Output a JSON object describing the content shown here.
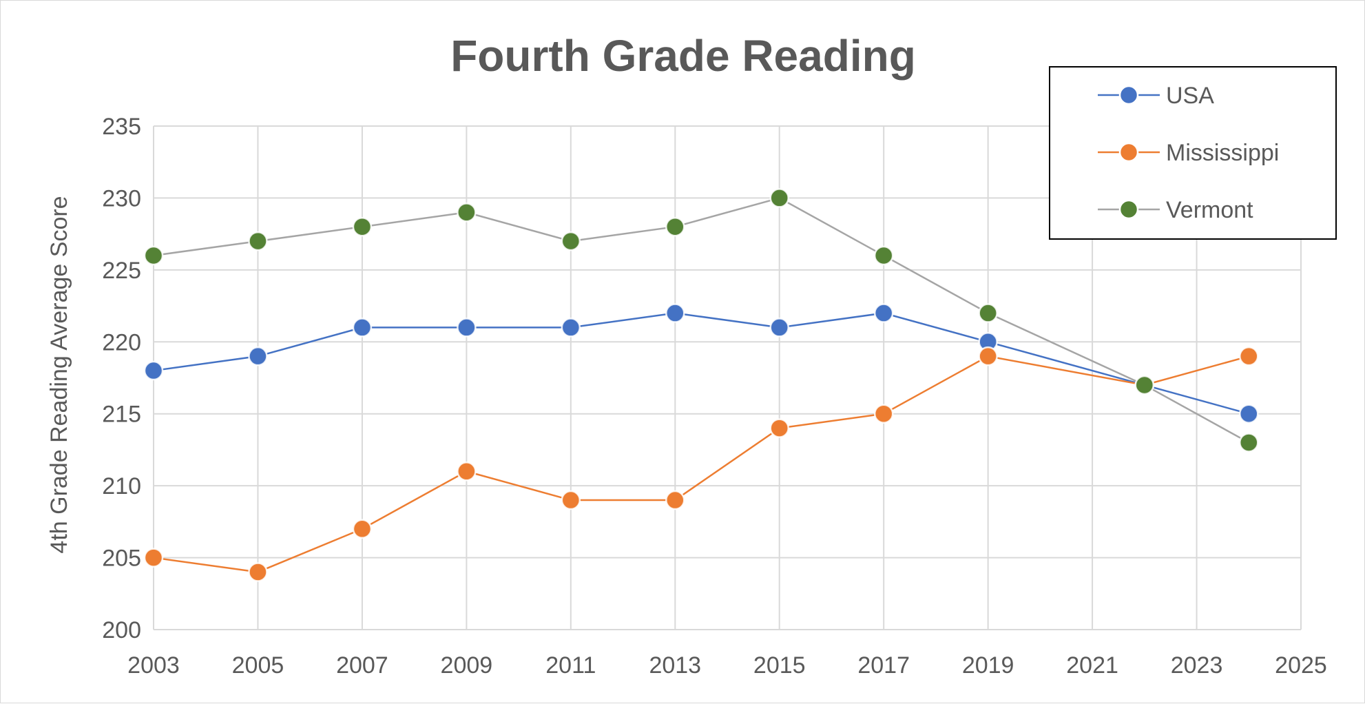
{
  "chart_data": {
    "type": "line",
    "title": "Fourth Grade Reading",
    "xlabel": "",
    "ylabel": "4th Grade Reading Average Score",
    "xlim": [
      2003,
      2025
    ],
    "ylim": [
      200,
      235
    ],
    "x_ticks": [
      "2003",
      "2005",
      "2007",
      "2009",
      "2011",
      "2013",
      "2015",
      "2017",
      "2019",
      "2021",
      "2023",
      "2025"
    ],
    "y_ticks": [
      "200",
      "205",
      "210",
      "215",
      "220",
      "225",
      "230",
      "235"
    ],
    "grid": true,
    "legend_position": "top-right",
    "x": [
      2003,
      2005,
      2007,
      2009,
      2011,
      2013,
      2015,
      2017,
      2019,
      2022,
      2024
    ],
    "series": [
      {
        "name": "USA",
        "line_color": "#4472c4",
        "marker_color": "#4472c4",
        "values": [
          218,
          219,
          221,
          221,
          221,
          222,
          221,
          222,
          220,
          217,
          215
        ]
      },
      {
        "name": "Mississippi",
        "line_color": "#ed7d31",
        "marker_color": "#ed7d31",
        "values": [
          205,
          204,
          207,
          211,
          209,
          209,
          214,
          215,
          219,
          217,
          219
        ]
      },
      {
        "name": "Vermont",
        "line_color": "#a5a5a5",
        "marker_color": "#548235",
        "values": [
          226,
          227,
          228,
          229,
          227,
          228,
          230,
          226,
          222,
          217,
          213
        ]
      }
    ]
  }
}
